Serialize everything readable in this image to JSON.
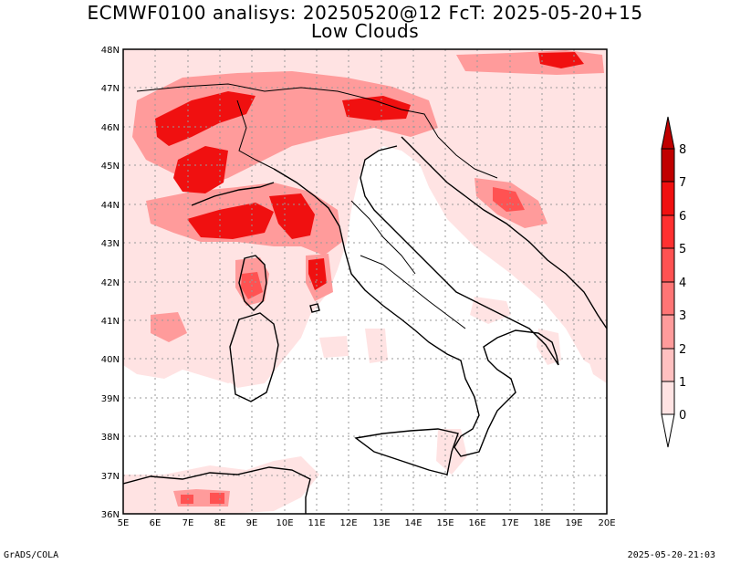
{
  "title_line1": "ECMWF0100 analisys: 20250520@12 FcT: 2025-05-20+15",
  "title_line2": "Low Clouds",
  "footer_left": "GrADS/COLA",
  "footer_right": "2025-05-20-21:03",
  "lon_labels": [
    "5E",
    "6E",
    "7E",
    "8E",
    "9E",
    "10E",
    "11E",
    "12E",
    "13E",
    "14E",
    "15E",
    "16E",
    "17E",
    "18E",
    "19E",
    "20E"
  ],
  "lat_labels": [
    "48N",
    "47N",
    "46N",
    "45N",
    "44N",
    "43N",
    "42N",
    "41N",
    "40N",
    "39N",
    "38N",
    "37N",
    "36N"
  ],
  "colorbar": {
    "levels": [
      "0",
      "1",
      "2",
      "3",
      "4",
      "5",
      "6",
      "7",
      "8"
    ],
    "colors": [
      "#ffe3e3",
      "#ffc0c0",
      "#ff9b9b",
      "#ff7575",
      "#ff5252",
      "#ff3030",
      "#f01010",
      "#c00000"
    ]
  },
  "palette": {
    "coast": "#000000",
    "grid": "#999999"
  }
}
